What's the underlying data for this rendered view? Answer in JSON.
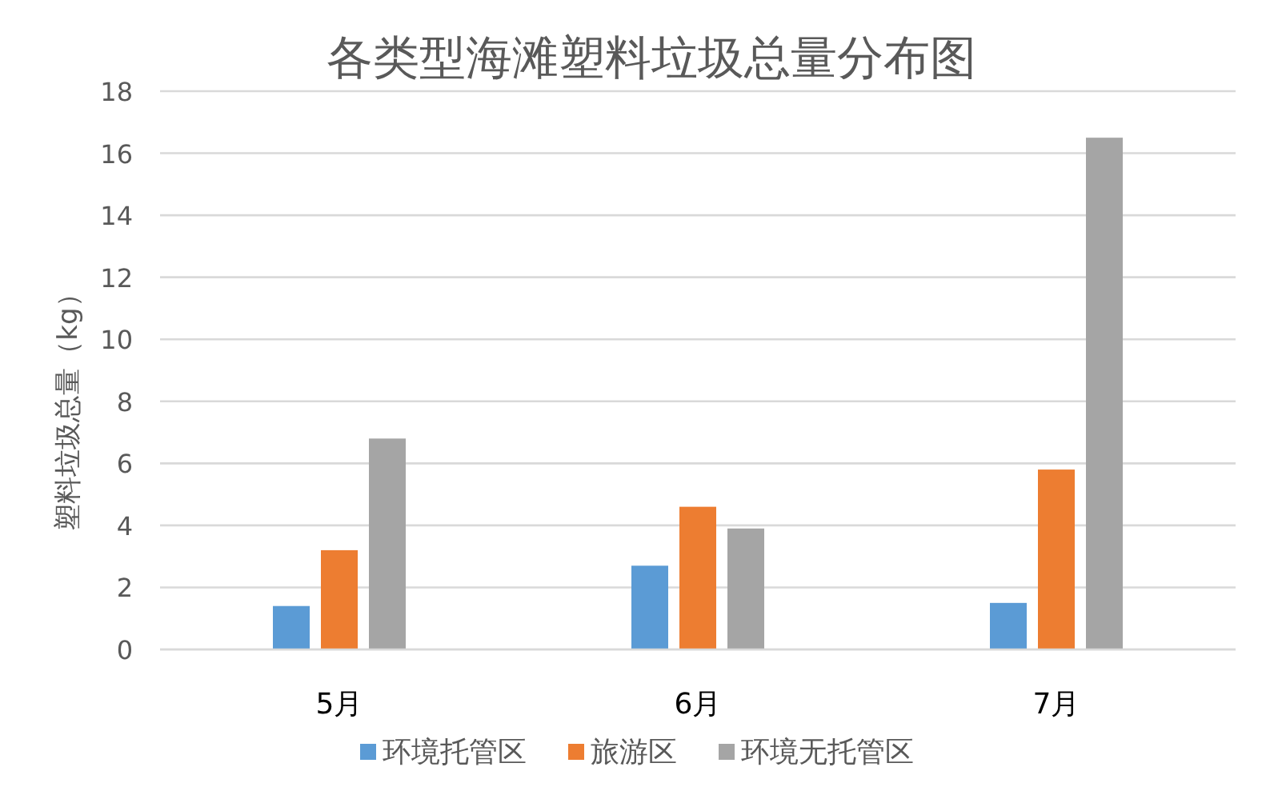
{
  "chart_data": {
    "type": "bar",
    "title": "各类型海滩塑料垃圾总量分布图",
    "ylabel": "塑料垃圾总量（kg）",
    "categories": [
      "5月",
      "6月",
      "7月"
    ],
    "series": [
      {
        "name": "环境托管区",
        "color": "#5b9bd5",
        "values": [
          1.4,
          2.7,
          1.5
        ]
      },
      {
        "name": "旅游区",
        "color": "#ed7d31",
        "values": [
          3.2,
          4.6,
          5.8
        ]
      },
      {
        "name": "环境无托管区",
        "color": "#a5a5a5",
        "values": [
          6.8,
          3.9,
          16.5
        ]
      }
    ],
    "ylim": [
      0,
      18
    ],
    "yticks": [
      0,
      2,
      4,
      6,
      8,
      10,
      12,
      14,
      16,
      18
    ],
    "grid": "y",
    "legend": "bottom"
  }
}
